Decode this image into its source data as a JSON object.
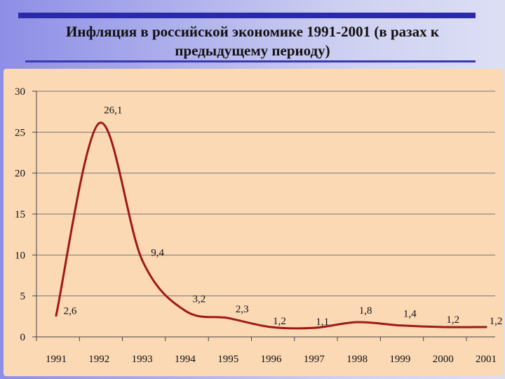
{
  "title": "Инфляция в российской экономике 1991-2001 (в разах к предыдущему периоду)",
  "colors": {
    "line": "#a01818",
    "background": "#fbd9b4",
    "accent": "#2a2aa8"
  },
  "chart_data": {
    "type": "line",
    "title": "Инфляция в российской экономике 1991-2001 (в разах к предыдущему периоду)",
    "xlabel": "",
    "ylabel": "",
    "categories": [
      "1991",
      "1992",
      "1993",
      "1994",
      "1995",
      "1996",
      "1997",
      "1998",
      "1999",
      "2000",
      "2001"
    ],
    "ylim": [
      0,
      30
    ],
    "yticks": [
      "0",
      "5",
      "10",
      "15",
      "20",
      "25",
      "30"
    ],
    "grid": true,
    "series": [
      {
        "values": [
          2.6,
          26.1,
          9.4,
          3.2,
          2.3,
          1.2,
          1.1,
          1.8,
          1.4,
          1.2,
          1.2
        ],
        "labels": [
          "2,6",
          "26,1",
          "9,4",
          "3,2",
          "2,3",
          "1,2",
          "1,1",
          "1,8",
          "1,4",
          "1,2",
          "1,2"
        ]
      }
    ]
  }
}
